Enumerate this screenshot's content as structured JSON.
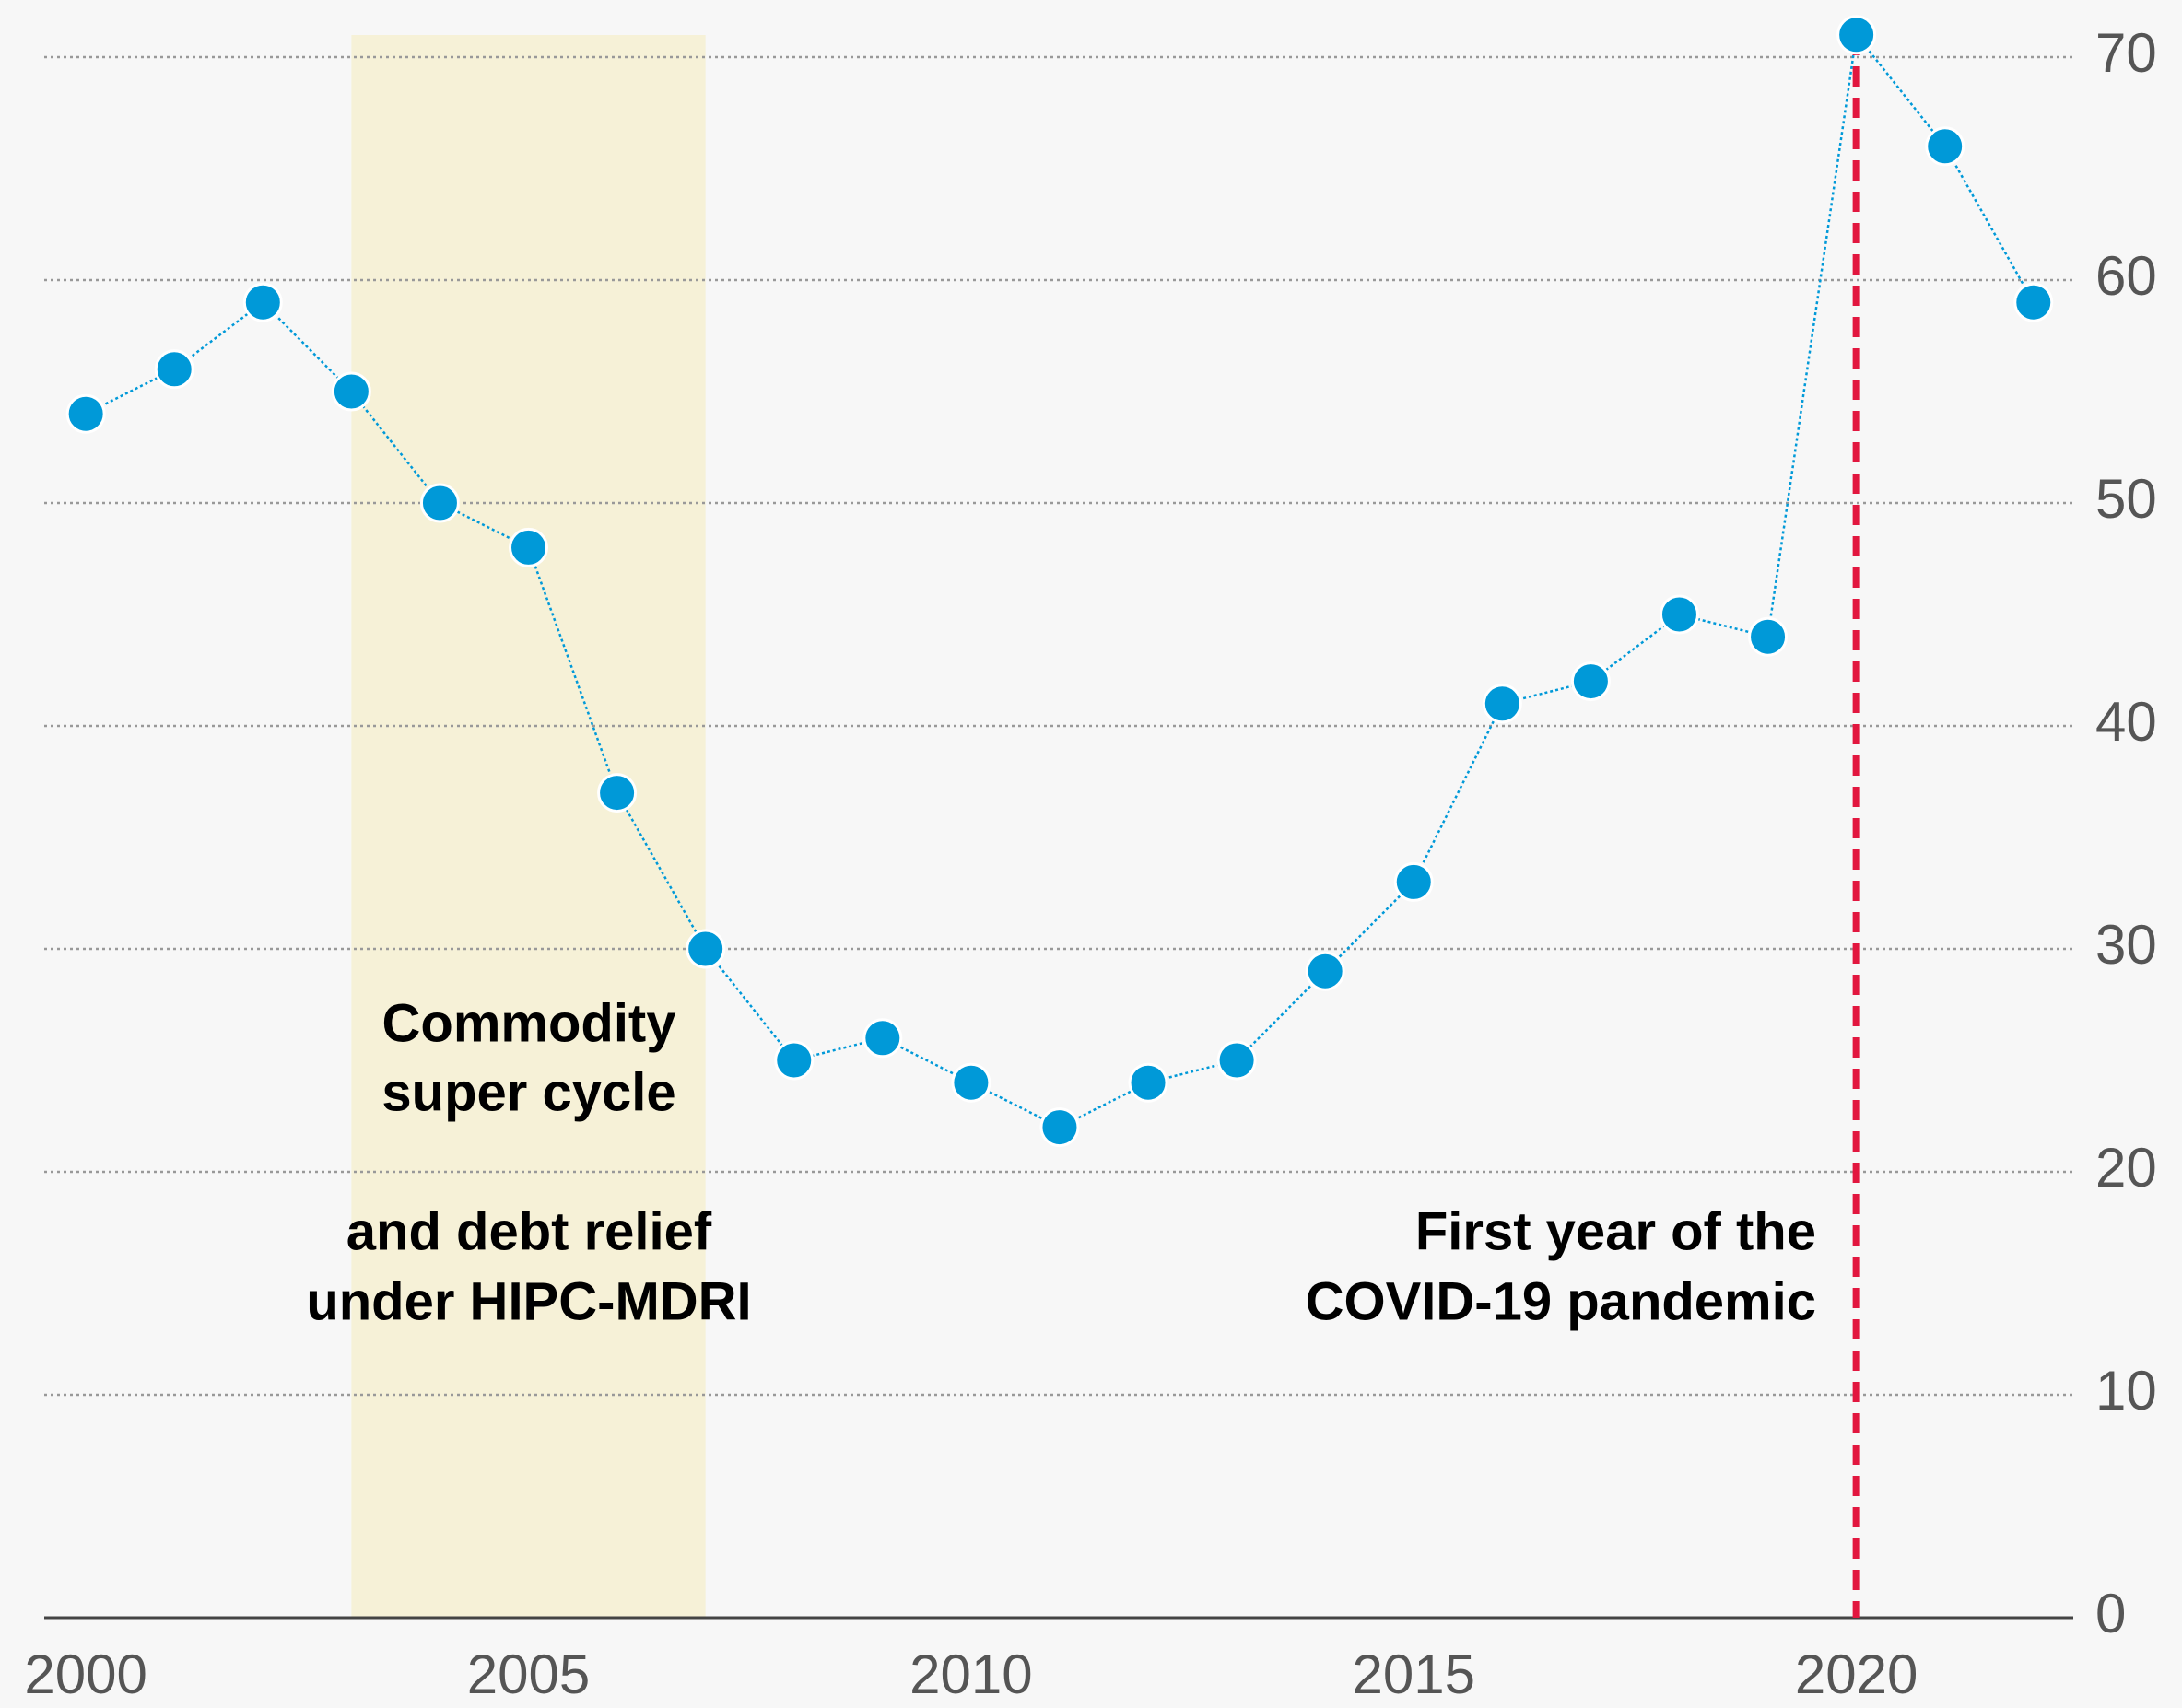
{
  "chart_data": {
    "type": "line",
    "x": [
      2000,
      2001,
      2002,
      2003,
      2004,
      2005,
      2006,
      2007,
      2008,
      2009,
      2010,
      2011,
      2012,
      2013,
      2014,
      2015,
      2016,
      2017,
      2018,
      2019,
      2020,
      2021,
      2022
    ],
    "series": [
      {
        "name": null,
        "color": "#0099d8",
        "values": [
          54,
          56,
          59,
          55,
          50,
          48,
          37,
          30,
          25,
          26,
          24,
          22,
          24,
          25,
          29,
          33,
          41,
          42,
          45,
          44,
          71,
          66,
          59
        ]
      }
    ],
    "xlim": [
      1999.53,
      2022.45
    ],
    "xticks": [
      2000,
      2005,
      2010,
      2015,
      2020
    ],
    "ylim": [
      0,
      70
    ],
    "yticks": [
      0,
      10,
      20,
      30,
      40,
      50,
      60,
      70
    ],
    "grid": true,
    "y_axis_side": "right",
    "shaded_span": {
      "x": [
        2003,
        2007
      ],
      "color": "#f6f1d7"
    },
    "vline": {
      "x": 2020,
      "color": "#e2173f"
    },
    "annotations": [
      {
        "lines": [
          "Commodity",
          "super cycle",
          "and debt relief",
          "under HIPC-MDRI"
        ]
      },
      {
        "lines": [
          "First year of the",
          "COVID-19 pandemic"
        ]
      }
    ]
  }
}
